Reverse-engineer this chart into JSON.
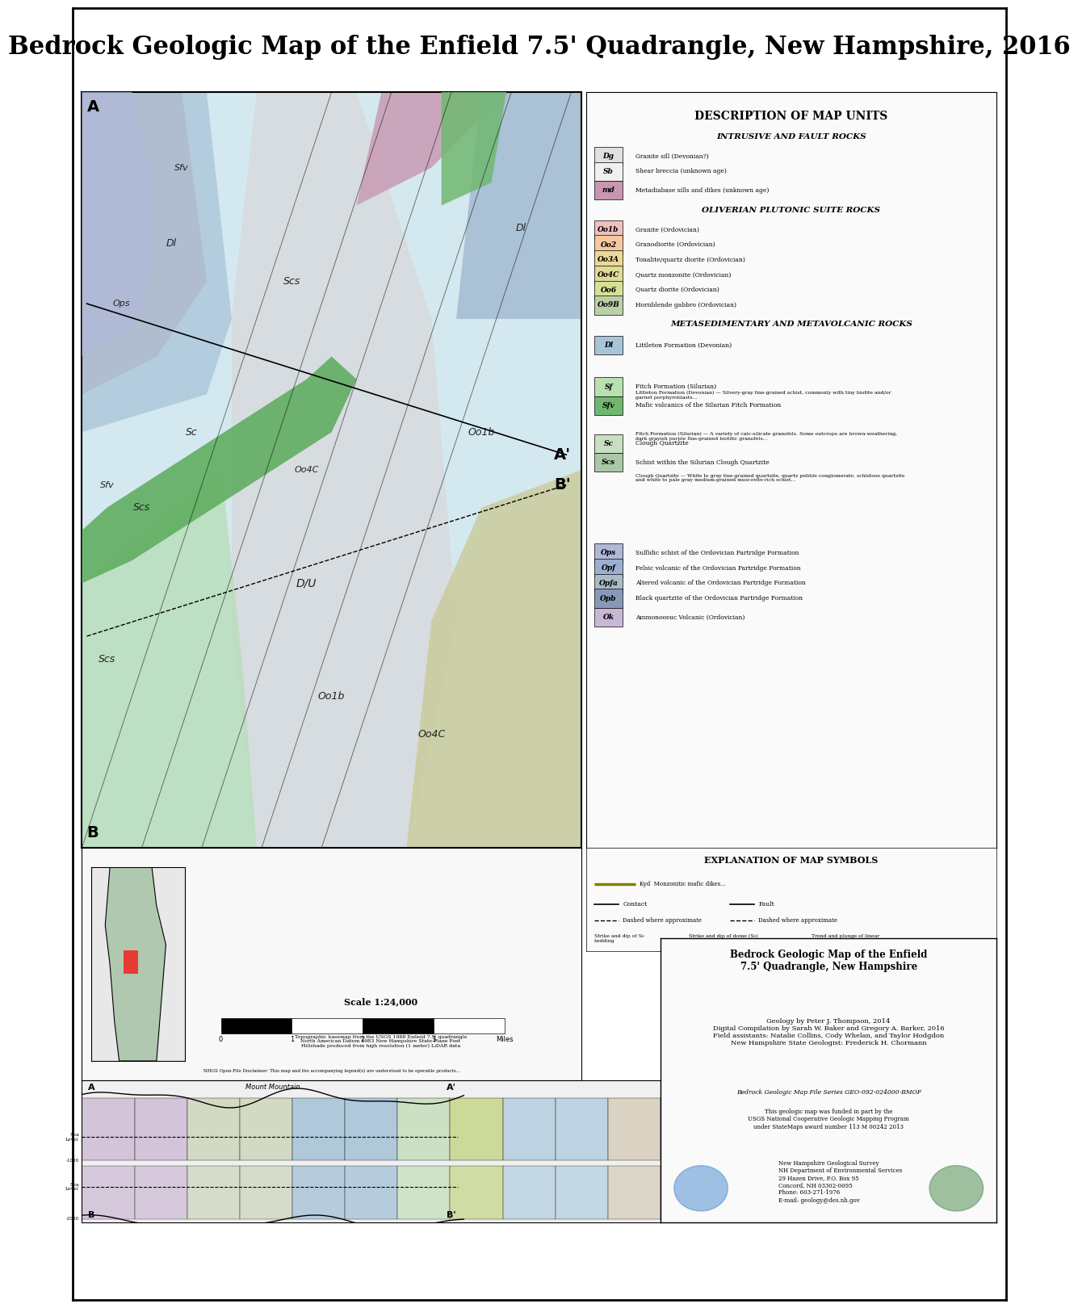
{
  "title": "Bedrock Geologic Map of the Enfield 7.5' Quadrangle, New Hampshire, 2016",
  "title_fontsize": 22,
  "title_fontweight": "bold",
  "bg_color": "#ffffff",
  "map_bg": "#d4e8f0",
  "legend_title": "DESCRIPTION OF MAP UNITS",
  "legend_subtitle1": "INTRUSIVE AND FAULT ROCKS",
  "legend_subtitle2": "OLIVERIAN PLUTONIC SUITE ROCKS",
  "legend_subtitle3": "METASEDIMENTARY AND METAVOLCANIC ROCKS",
  "map_colors": {
    "Dg": "#e8e8e8",
    "Sb": "#f5f5f5",
    "md": "#d4a0c0",
    "Oo1b": "#f0c8c8",
    "Oo2": "#f5d0b0",
    "Oo3A": "#f0d8a0",
    "Oo4C": "#e8e0a0",
    "Oo6": "#e0e8a0",
    "Oo9B": "#c8d8b0",
    "Dl": "#b8d4e0",
    "Sf": "#c8e8c0",
    "Sfv": "#a0c890",
    "Sc": "#d0e8d0",
    "Scs": "#b8d8b8",
    "Ops": "#c0c8e8",
    "Opf": "#a8b8e0",
    "Opfa": "#b8c8d8",
    "Opb": "#98a8c8",
    "Ok": "#d8c8e8",
    "Oo4C_main": "#c8d0a0",
    "green_stripe": "#70b870",
    "pink_band": "#e8a0b0",
    "gray_light": "#c8c8c8"
  },
  "cross_section_title": "Bedrock Geologic Map of the Enfield\n7.5' Quadrangle, New Hampshire",
  "credit_text": "Geology by Peter J. Thompson, 2014\nDigital Compilation by Sarah W. Baker and Gregory A. Barker, 2016\nField assistants: Natalie Collins, Cody Whelan, and Taylor Hodgdon\nNew Hampshire State Geologist: Frederick H. Chormann",
  "series_text": "Bedrock Geologic Map File Series GEO-092-024000-BMOF",
  "nhgs_text": "New Hampshire Geological Survey\nNH Department of Environmental Services\n29 Hazen Drive, P.O. Box 95\nConcord, NH 03302-0095\nPhone: 603-271-1976\nE-mail: geology@des.nh.gov",
  "scale_text": "Scale 1:24,000",
  "map_label_A": "A",
  "map_label_B": "B",
  "map_label_Ap": "A'",
  "map_label_Bp": "B'"
}
